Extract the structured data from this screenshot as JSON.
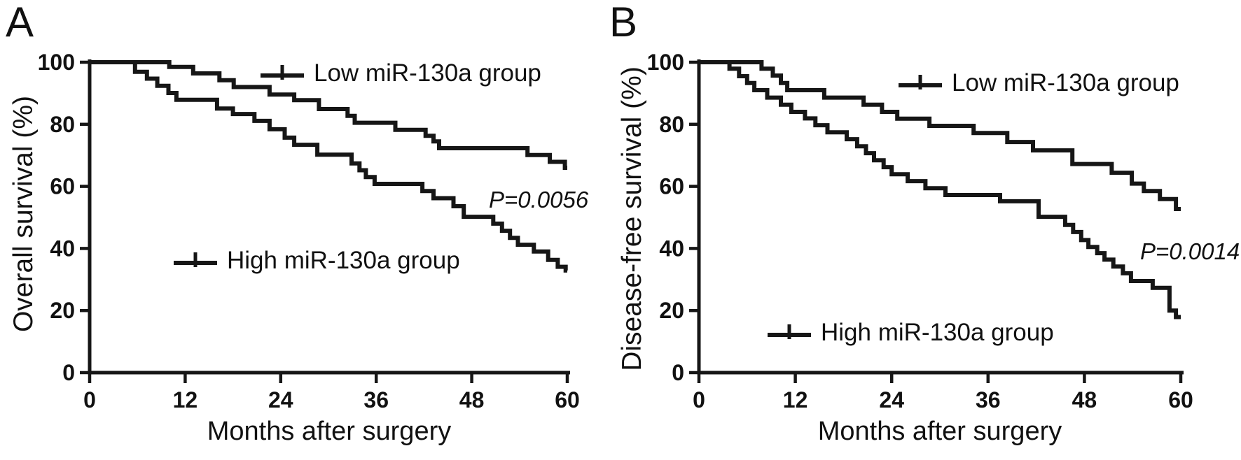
{
  "figure": {
    "background": "#ffffff",
    "line_color": "#161616",
    "text_color": "#111111"
  },
  "chart_data": [
    {
      "type": "line",
      "subtype": "kaplan-meier-step",
      "panel_letter": "A",
      "xlabel": "Months after surgery",
      "ylabel": "Overall survival (%)",
      "p_value_label": "P=0.0056",
      "xlim": [
        0,
        60
      ],
      "ylim": [
        0,
        100
      ],
      "x_ticks": [
        0,
        12,
        24,
        36,
        48,
        60
      ],
      "y_ticks": [
        0,
        20,
        40,
        60,
        80,
        100
      ],
      "grid": false,
      "legend_position": "inside",
      "series": [
        {
          "name": "Low miR-130a group",
          "points": [
            [
              0,
              100
            ],
            [
              10,
              98.5
            ],
            [
              13,
              96.4
            ],
            [
              16.3,
              94.2
            ],
            [
              18.1,
              92
            ],
            [
              22.6,
              89.6
            ],
            [
              25.7,
              87.8
            ],
            [
              28.8,
              84.9
            ],
            [
              32.4,
              82.7
            ],
            [
              33.3,
              80.5
            ],
            [
              38.4,
              78.2
            ],
            [
              42.2,
              76.3
            ],
            [
              43.2,
              74.5
            ],
            [
              43.9,
              72.3
            ],
            [
              55,
              70.1
            ],
            [
              57.8,
              67.9
            ],
            [
              59.7,
              66
            ]
          ]
        },
        {
          "name": "High miR-130a group",
          "points": [
            [
              0,
              100
            ],
            [
              5.7,
              96.9
            ],
            [
              7.2,
              94.7
            ],
            [
              8.5,
              92.4
            ],
            [
              9.9,
              90.1
            ],
            [
              10.9,
              87.9
            ],
            [
              16,
              85.1
            ],
            [
              18,
              83.3
            ],
            [
              20.7,
              81.1
            ],
            [
              22.6,
              78.4
            ],
            [
              24.5,
              75.7
            ],
            [
              25.7,
              73.4
            ],
            [
              28.6,
              70.2
            ],
            [
              32.9,
              67.4
            ],
            [
              33.9,
              65.2
            ],
            [
              34.7,
              63
            ],
            [
              35.8,
              60.8
            ],
            [
              41.8,
              58.5
            ],
            [
              43.2,
              56.2
            ],
            [
              45.7,
              53.6
            ],
            [
              47,
              50.2
            ],
            [
              50.7,
              48
            ],
            [
              51.8,
              45.7
            ],
            [
              52.8,
              43.4
            ],
            [
              53.8,
              41.2
            ],
            [
              55.8,
              39
            ],
            [
              57.6,
              36.3
            ],
            [
              58.8,
              34.1
            ],
            [
              59.8,
              32.9
            ]
          ]
        }
      ]
    },
    {
      "type": "line",
      "subtype": "kaplan-meier-step",
      "panel_letter": "B",
      "xlabel": "Months after surgery",
      "ylabel": "Disease-free survival (%)",
      "p_value_label": "P=0.0014",
      "xlim": [
        0,
        60
      ],
      "ylim": [
        0,
        100
      ],
      "x_ticks": [
        0,
        12,
        24,
        36,
        48,
        60
      ],
      "y_ticks": [
        0,
        20,
        40,
        60,
        80,
        100
      ],
      "grid": false,
      "legend_position": "inside",
      "series": [
        {
          "name": "Low miR-130a group",
          "points": [
            [
              0,
              100
            ],
            [
              7.8,
              97.9
            ],
            [
              9.2,
              95.7
            ],
            [
              10.2,
              93.3
            ],
            [
              11,
              91
            ],
            [
              15.6,
              88.6
            ],
            [
              20.5,
              86.3
            ],
            [
              22.8,
              84
            ],
            [
              24.7,
              81.8
            ],
            [
              28.7,
              79.5
            ],
            [
              34.2,
              77.2
            ],
            [
              38.4,
              74.3
            ],
            [
              41.6,
              71.6
            ],
            [
              46.5,
              67.2
            ],
            [
              51.4,
              64.4
            ],
            [
              53.9,
              60.9
            ],
            [
              55.4,
              58.5
            ],
            [
              57.4,
              55.9
            ],
            [
              59.4,
              52.7
            ]
          ]
        },
        {
          "name": "High miR-130a group",
          "points": [
            [
              0,
              100
            ],
            [
              3.8,
              97.9
            ],
            [
              5,
              95.5
            ],
            [
              6,
              93.3
            ],
            [
              6.9,
              91
            ],
            [
              8.5,
              88.6
            ],
            [
              10.2,
              86.3
            ],
            [
              11.5,
              84
            ],
            [
              13.2,
              81.9
            ],
            [
              14.5,
              79.7
            ],
            [
              16,
              77.4
            ],
            [
              18.4,
              75.2
            ],
            [
              19.7,
              72.9
            ],
            [
              20.8,
              70.7
            ],
            [
              21.8,
              68.4
            ],
            [
              23,
              66.2
            ],
            [
              24,
              63.9
            ],
            [
              26,
              61.7
            ],
            [
              28.2,
              59.4
            ],
            [
              30.7,
              57.2
            ],
            [
              37.5,
              55.2
            ],
            [
              42.3,
              50.2
            ],
            [
              45.6,
              47.6
            ],
            [
              46.6,
              45.3
            ],
            [
              47.6,
              42.7
            ],
            [
              48.5,
              40.5
            ],
            [
              49.6,
              38.5
            ],
            [
              50.5,
              36.4
            ],
            [
              51.6,
              34.2
            ],
            [
              52.8,
              32
            ],
            [
              53.8,
              29.5
            ],
            [
              56.5,
              27.3
            ],
            [
              58.6,
              20
            ],
            [
              59.4,
              17.9
            ]
          ]
        }
      ]
    }
  ]
}
